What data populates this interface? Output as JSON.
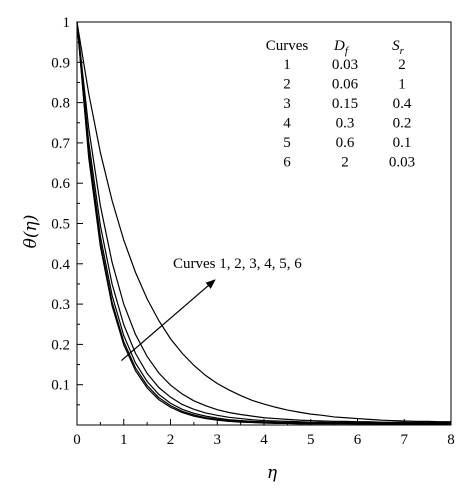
{
  "chart_data": {
    "type": "line",
    "xlabel": "η",
    "ylabel": "θ(η)",
    "xlim": [
      0,
      8
    ],
    "ylim": [
      0,
      1
    ],
    "x_ticks": [
      "0",
      "1",
      "2",
      "3",
      "4",
      "5",
      "6",
      "7",
      "8"
    ],
    "y_ticks": [
      "0.1",
      "0.2",
      "0.3",
      "0.4",
      "0.5",
      "0.6",
      "0.7",
      "0.8",
      "0.9",
      "1"
    ],
    "grid": false,
    "legend_table": {
      "placement": "top-right",
      "headers": {
        "curves": "Curves",
        "df_main": "D",
        "df_sub": "f",
        "sr_main": "S",
        "sr_sub": "r"
      },
      "rows": [
        {
          "curve": "1",
          "df": "0.03",
          "sr": "2"
        },
        {
          "curve": "2",
          "df": "0.06",
          "sr": "1"
        },
        {
          "curve": "3",
          "df": "0.15",
          "sr": "0.4"
        },
        {
          "curve": "4",
          "df": "0.3",
          "sr": "0.2"
        },
        {
          "curve": "5",
          "df": "0.6",
          "sr": "0.1"
        },
        {
          "curve": "6",
          "df": "2",
          "sr": "0.03"
        }
      ]
    },
    "annotation": "Curves 1, 2, 3, 4, 5, 6",
    "arrow": {
      "from": [
        0.95,
        0.16
      ],
      "to": [
        2.95,
        0.36
      ]
    },
    "x": [
      0,
      0.25,
      0.5,
      0.75,
      1,
      1.25,
      1.5,
      1.75,
      2,
      2.25,
      2.5,
      2.75,
      3,
      3.25,
      3.5,
      3.75,
      4,
      4.25,
      4.5,
      4.75,
      5,
      5.25,
      5.5,
      5.75,
      6,
      6.25,
      6.5,
      6.75,
      7,
      7.25,
      7.5,
      7.75,
      8
    ],
    "series": [
      {
        "values": [
          1,
          0.823,
          0.676,
          0.557,
          0.459,
          0.379,
          0.313,
          0.259,
          0.214,
          0.178,
          0.148,
          0.123,
          0.103,
          0.087,
          0.073,
          0.061,
          0.052,
          0.044,
          0.037,
          0.032,
          0.027,
          0.024,
          0.02,
          0.018,
          0.016,
          0.014,
          0.012,
          0.011,
          0.01,
          0.009,
          0.009,
          0.008,
          0.008
        ]
      },
      {
        "values": [
          1,
          0.737,
          0.544,
          0.404,
          0.3,
          0.225,
          0.17,
          0.129,
          0.099,
          0.077,
          0.06,
          0.048,
          0.038,
          0.031,
          0.026,
          0.022,
          0.018,
          0.016,
          0.014,
          0.012,
          0.011,
          0.01,
          0.009,
          0.009,
          0.008,
          0.008,
          0.007,
          0.007,
          0.007,
          0.006,
          0.006,
          0.006,
          0.006
        ]
      },
      {
        "values": [
          1,
          0.703,
          0.495,
          0.35,
          0.249,
          0.178,
          0.128,
          0.093,
          0.069,
          0.051,
          0.039,
          0.03,
          0.024,
          0.019,
          0.016,
          0.013,
          0.011,
          0.01,
          0.009,
          0.008,
          0.007,
          0.007,
          0.006,
          0.006,
          0.006,
          0.006,
          0.005,
          0.005,
          0.005,
          0.005,
          0.005,
          0.005,
          0.005
        ]
      },
      {
        "values": [
          1,
          0.683,
          0.468,
          0.322,
          0.222,
          0.154,
          0.108,
          0.076,
          0.054,
          0.039,
          0.029,
          0.022,
          0.017,
          0.013,
          0.011,
          0.009,
          0.008,
          0.007,
          0.006,
          0.006,
          0.005,
          0.005,
          0.005,
          0.005,
          0.004,
          0.004,
          0.004,
          0.004,
          0.004,
          0.004,
          0.004,
          0.004,
          0.004
        ]
      },
      {
        "values": [
          1,
          0.671,
          0.452,
          0.305,
          0.207,
          0.142,
          0.098,
          0.068,
          0.048,
          0.034,
          0.025,
          0.018,
          0.014,
          0.011,
          0.009,
          0.007,
          0.006,
          0.005,
          0.005,
          0.004,
          0.004,
          0.004,
          0.004,
          0.004,
          0.003,
          0.003,
          0.003,
          0.003,
          0.003,
          0.003,
          0.003,
          0.003,
          0.003
        ]
      },
      {
        "values": [
          1,
          0.664,
          0.443,
          0.296,
          0.199,
          0.135,
          0.092,
          0.063,
          0.044,
          0.031,
          0.022,
          0.016,
          0.012,
          0.009,
          0.007,
          0.006,
          0.005,
          0.004,
          0.004,
          0.003,
          0.003,
          0.003,
          0.003,
          0.003,
          0.003,
          0.003,
          0.002,
          0.002,
          0.002,
          0.002,
          0.002,
          0.002,
          0.002
        ]
      }
    ]
  }
}
